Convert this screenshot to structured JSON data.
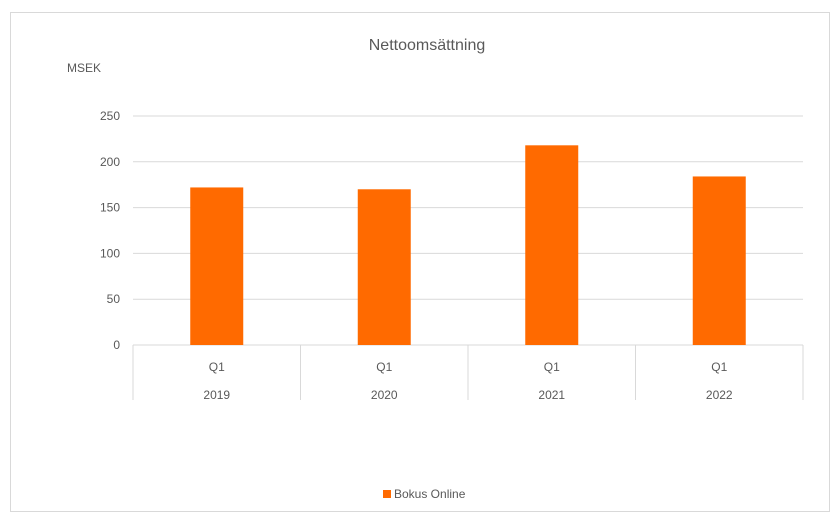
{
  "chart_data": {
    "type": "bar",
    "title": "Nettoomsättning",
    "ylabel": "MSEK",
    "xlabel": "",
    "ylim": [
      0,
      250
    ],
    "yticks": [
      0,
      50,
      100,
      150,
      200,
      250
    ],
    "categories": [
      "Q1",
      "Q1",
      "Q1",
      "Q1"
    ],
    "category_groups": [
      "2019",
      "2020",
      "2021",
      "2022"
    ],
    "series": [
      {
        "name": "Bokus Online",
        "values": [
          172,
          170,
          218,
          184
        ],
        "color": "#ff6a00"
      }
    ],
    "gridlines": true,
    "legend_position": "bottom"
  }
}
